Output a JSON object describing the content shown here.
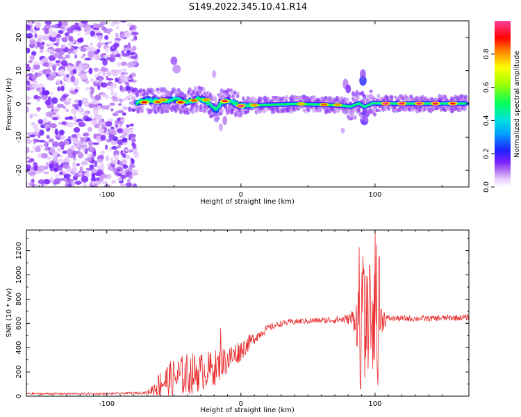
{
  "title": "S149.2022.345.10.41.R14",
  "colors": {
    "snr_line": "#e8282a",
    "spectrum_cmap": [
      "#ffffff",
      "#e6c8ff",
      "#b070f0",
      "#7a20ff",
      "#2020ff",
      "#00a0ff",
      "#00e0e0",
      "#00ff60",
      "#a0ff00",
      "#ffff00",
      "#ff8000",
      "#ff0000",
      "#ff40a0"
    ]
  },
  "chart_data": [
    {
      "type": "heatmap",
      "xlabel": "Height of straight line (km)",
      "ylabel": "Frequency (Hz)",
      "xlim": [
        -160,
        170
      ],
      "ylim": [
        -25,
        25
      ],
      "xticks": [
        -100,
        0,
        100
      ],
      "xtick_labels": [
        "-100",
        "0",
        "100"
      ],
      "yticks": [
        -20,
        -10,
        0,
        10,
        20
      ],
      "ytick_labels": [
        "-20",
        "-10",
        "0",
        "10",
        "20"
      ],
      "colorbar": {
        "label": "Normalized spectral amplitude",
        "range": [
          0,
          1
        ],
        "ticks": [
          0.0,
          0.2,
          0.4,
          0.6,
          0.8
        ],
        "tick_labels": [
          "0.0",
          "0.2",
          "0.4",
          "0.6",
          "0.8"
        ]
      },
      "noise_region_x": [
        -160,
        -78
      ],
      "ridge": [
        [
          -78,
          0.3
        ],
        [
          -70,
          1.2
        ],
        [
          -60,
          0.8
        ],
        [
          -50,
          1.3
        ],
        [
          -40,
          0.6
        ],
        [
          -30,
          1.6
        ],
        [
          -25,
          0.5
        ],
        [
          -20,
          -1.5
        ],
        [
          -18,
          -1.8
        ],
        [
          -15,
          0.3
        ],
        [
          -10,
          1.0
        ],
        [
          -5,
          0.3
        ],
        [
          0,
          -0.6
        ],
        [
          5,
          -0.5
        ],
        [
          20,
          -0.3
        ],
        [
          40,
          0
        ],
        [
          60,
          -0.2
        ],
        [
          75,
          -0.5
        ],
        [
          82,
          -0.8
        ],
        [
          88,
          0.2
        ],
        [
          92,
          -0.9
        ],
        [
          95,
          -0.4
        ],
        [
          98,
          0.2
        ],
        [
          120,
          0.1
        ],
        [
          150,
          0.1
        ],
        [
          168,
          0.1
        ]
      ],
      "peaks": [
        [
          -72,
          0.5,
          0.9
        ],
        [
          -62,
          0.6,
          0.85
        ],
        [
          -58,
          1.2,
          0.8
        ],
        [
          -45,
          0.5,
          0.9
        ],
        [
          -35,
          1.0,
          0.85
        ],
        [
          -26,
          1.2,
          0.8
        ],
        [
          -12,
          0.8,
          0.92
        ],
        [
          0,
          -0.6,
          0.98
        ],
        [
          10,
          -0.4,
          0.8
        ],
        [
          45,
          0.0,
          0.78
        ],
        [
          62,
          -0.2,
          0.85
        ],
        [
          72,
          -0.3,
          0.8
        ],
        [
          108,
          0.1,
          0.98
        ],
        [
          120,
          0.1,
          0.96
        ],
        [
          133,
          0.1,
          0.97
        ],
        [
          145,
          0.1,
          0.95
        ],
        [
          158,
          0.1,
          0.92
        ]
      ],
      "blobs": [
        [
          -50,
          13,
          0.25
        ],
        [
          -48,
          10.5,
          0.18
        ],
        [
          -20,
          9,
          0.15
        ],
        [
          78,
          6,
          0.2
        ],
        [
          80,
          4.5,
          0.3
        ],
        [
          91,
          7,
          0.45
        ],
        [
          91,
          9,
          0.25
        ],
        [
          92,
          -5,
          0.35
        ],
        [
          93,
          -3,
          0.45
        ],
        [
          76,
          -8,
          0.15
        ],
        [
          -12,
          -5,
          0.2
        ],
        [
          -15,
          -7,
          0.15
        ]
      ]
    },
    {
      "type": "line",
      "xlabel": "Height of straight line (km)",
      "ylabel": "SNR (10 * v/v)",
      "xlim": [
        -160,
        170
      ],
      "ylim": [
        0,
        1370
      ],
      "xticks": [
        -100,
        0,
        100
      ],
      "xtick_labels": [
        "-100",
        "0",
        "100"
      ],
      "yticks": [
        0,
        200,
        400,
        600,
        800,
        1000,
        1200
      ],
      "ytick_labels": [
        "0",
        "200",
        "400",
        "600",
        "800",
        "1000",
        "1200"
      ],
      "series": [
        {
          "envelope_x": [
            -160,
            -100,
            -70,
            -65,
            -60,
            -50,
            -40,
            -30,
            -20,
            -10,
            0,
            10,
            20,
            30,
            40,
            60,
            80,
            85,
            88,
            90,
            92,
            95,
            98,
            100,
            102,
            104,
            110,
            140,
            170
          ],
          "envelope_base": [
            20,
            20,
            28,
            60,
            110,
            150,
            180,
            200,
            230,
            300,
            380,
            480,
            560,
            600,
            615,
            625,
            635,
            640,
            630,
            600,
            580,
            600,
            610,
            620,
            620,
            640,
            640,
            640,
            650
          ],
          "envelope_amp": [
            8,
            8,
            10,
            60,
            120,
            160,
            180,
            160,
            150,
            120,
            90,
            50,
            30,
            25,
            25,
            25,
            40,
            120,
            350,
            450,
            480,
            380,
            420,
            480,
            450,
            150,
            25,
            25,
            25
          ],
          "spikes": [
            [
              88,
              1230
            ],
            [
              89,
              60
            ],
            [
              91,
              1160
            ],
            [
              96,
              1080
            ],
            [
              100,
              1370
            ],
            [
              101,
              1250
            ],
            [
              102,
              90
            ],
            [
              103,
              1150
            ],
            [
              -15,
              560
            ]
          ]
        }
      ]
    }
  ]
}
